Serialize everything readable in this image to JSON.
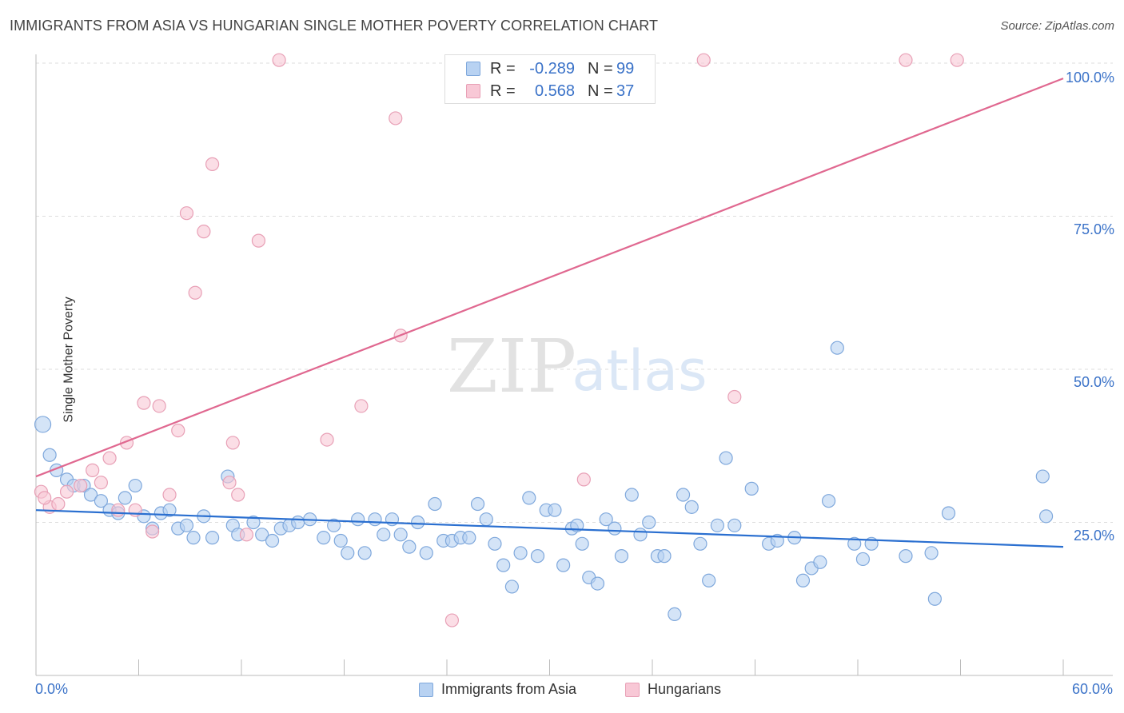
{
  "title": "IMMIGRANTS FROM ASIA VS HUNGARIAN SINGLE MOTHER POVERTY CORRELATION CHART",
  "source": "Source: ZipAtlas.com",
  "watermark": {
    "zip": "ZIP",
    "atlas": "atlas"
  },
  "legend_top": {
    "rows": [
      {
        "r_label": "R =",
        "r_value": "-0.289",
        "n_label": "N =",
        "n_value": "99"
      },
      {
        "r_label": "R =",
        "r_value": "0.568",
        "n_label": "N =",
        "n_value": "37"
      }
    ]
  },
  "legend_bottom": {
    "items": [
      {
        "label": "Immigrants from Asia"
      },
      {
        "label": "Hungarians"
      }
    ]
  },
  "colors": {
    "blue_fill": "#b8d2f2",
    "blue_stroke": "#7fa8dc",
    "blue_line": "#2a6fd0",
    "pink_fill": "#f8c8d6",
    "pink_stroke": "#e8a0b6",
    "pink_line": "#e06890",
    "axis_text": "#3a72c8",
    "grid": "#dddddd"
  },
  "chart_data": {
    "type": "scatter",
    "title": "IMMIGRANTS FROM ASIA VS HUNGARIAN SINGLE MOTHER POVERTY CORRELATION CHART",
    "xlabel": "",
    "ylabel": "Single Mother Poverty",
    "xlim": [
      0,
      60
    ],
    "ylim": [
      0,
      100
    ],
    "x_tick_labels": [
      "0.0%",
      "60.0%"
    ],
    "y_tick_labels": [
      "25.0%",
      "50.0%",
      "75.0%",
      "100.0%"
    ],
    "y_ticks": [
      25,
      50,
      75,
      100
    ],
    "grid": true,
    "legend_position": "top-center",
    "series": [
      {
        "name": "Immigrants from Asia",
        "color": "blue",
        "r": -0.289,
        "n": 99,
        "trend": {
          "x": [
            0,
            60
          ],
          "y": [
            27.0,
            21.0
          ]
        },
        "points": [
          [
            0.4,
            41.0
          ],
          [
            0.8,
            36.0
          ],
          [
            1.2,
            33.5
          ],
          [
            1.8,
            32.0
          ],
          [
            2.2,
            31.0
          ],
          [
            2.8,
            31.0
          ],
          [
            3.2,
            29.5
          ],
          [
            3.8,
            28.5
          ],
          [
            4.3,
            27.0
          ],
          [
            4.8,
            26.5
          ],
          [
            5.2,
            29.0
          ],
          [
            5.8,
            31.0
          ],
          [
            6.3,
            26.0
          ],
          [
            6.8,
            24.0
          ],
          [
            7.3,
            26.5
          ],
          [
            7.8,
            27.0
          ],
          [
            8.3,
            24.0
          ],
          [
            8.8,
            24.5
          ],
          [
            9.2,
            22.5
          ],
          [
            9.8,
            26.0
          ],
          [
            10.3,
            22.5
          ],
          [
            11.2,
            32.5
          ],
          [
            11.5,
            24.5
          ],
          [
            11.8,
            23.0
          ],
          [
            12.7,
            25.0
          ],
          [
            13.2,
            23.0
          ],
          [
            13.8,
            22.0
          ],
          [
            14.3,
            24.0
          ],
          [
            14.8,
            24.5
          ],
          [
            15.3,
            25.0
          ],
          [
            16.0,
            25.5
          ],
          [
            16.8,
            22.5
          ],
          [
            17.4,
            24.5
          ],
          [
            17.8,
            22.0
          ],
          [
            18.2,
            20.0
          ],
          [
            18.8,
            25.5
          ],
          [
            19.2,
            20.0
          ],
          [
            19.8,
            25.5
          ],
          [
            20.3,
            23.0
          ],
          [
            20.8,
            25.5
          ],
          [
            21.3,
            23.0
          ],
          [
            21.8,
            21.0
          ],
          [
            22.3,
            25.0
          ],
          [
            22.8,
            20.0
          ],
          [
            23.3,
            28.0
          ],
          [
            23.8,
            22.0
          ],
          [
            24.3,
            22.0
          ],
          [
            24.8,
            22.5
          ],
          [
            25.3,
            22.5
          ],
          [
            25.8,
            28.0
          ],
          [
            26.3,
            25.5
          ],
          [
            26.8,
            21.5
          ],
          [
            27.3,
            18.0
          ],
          [
            27.8,
            14.5
          ],
          [
            28.3,
            20.0
          ],
          [
            28.8,
            29.0
          ],
          [
            29.3,
            19.5
          ],
          [
            29.8,
            27.0
          ],
          [
            30.3,
            27.0
          ],
          [
            30.8,
            18.0
          ],
          [
            31.3,
            24.0
          ],
          [
            31.6,
            24.5
          ],
          [
            31.9,
            21.5
          ],
          [
            32.3,
            16.0
          ],
          [
            32.8,
            15.0
          ],
          [
            33.3,
            25.5
          ],
          [
            33.8,
            24.0
          ],
          [
            34.2,
            19.5
          ],
          [
            34.8,
            29.5
          ],
          [
            35.3,
            23.0
          ],
          [
            35.8,
            25.0
          ],
          [
            36.3,
            19.5
          ],
          [
            36.7,
            19.5
          ],
          [
            37.3,
            10.0
          ],
          [
            37.8,
            29.5
          ],
          [
            38.3,
            27.5
          ],
          [
            38.8,
            21.5
          ],
          [
            39.3,
            15.5
          ],
          [
            39.8,
            24.5
          ],
          [
            40.3,
            35.5
          ],
          [
            40.8,
            24.5
          ],
          [
            41.8,
            30.5
          ],
          [
            42.8,
            21.5
          ],
          [
            43.3,
            22.0
          ],
          [
            44.3,
            22.5
          ],
          [
            44.8,
            15.5
          ],
          [
            45.3,
            17.5
          ],
          [
            45.8,
            18.5
          ],
          [
            46.3,
            28.5
          ],
          [
            46.8,
            53.5
          ],
          [
            47.8,
            21.5
          ],
          [
            48.3,
            19.0
          ],
          [
            48.8,
            21.5
          ],
          [
            50.8,
            19.5
          ],
          [
            52.3,
            20.0
          ],
          [
            52.5,
            12.5
          ],
          [
            53.3,
            26.5
          ],
          [
            58.8,
            32.5
          ],
          [
            59.0,
            26.0
          ]
        ]
      },
      {
        "name": "Hungarians",
        "color": "pink",
        "r": 0.568,
        "n": 37,
        "trend": {
          "x": [
            0,
            60
          ],
          "y": [
            32.5,
            97.5
          ]
        },
        "points": [
          [
            0.3,
            30.0
          ],
          [
            0.8,
            27.5
          ],
          [
            1.3,
            28.0
          ],
          [
            1.8,
            30.0
          ],
          [
            2.6,
            31.0
          ],
          [
            3.3,
            33.5
          ],
          [
            3.8,
            31.5
          ],
          [
            4.3,
            35.5
          ],
          [
            4.8,
            27.0
          ],
          [
            5.3,
            38.0
          ],
          [
            5.8,
            27.0
          ],
          [
            6.3,
            44.5
          ],
          [
            6.8,
            23.5
          ],
          [
            7.2,
            44.0
          ],
          [
            7.8,
            29.5
          ],
          [
            8.3,
            40.0
          ],
          [
            8.8,
            75.5
          ],
          [
            9.3,
            62.5
          ],
          [
            9.8,
            72.5
          ],
          [
            10.3,
            83.5
          ],
          [
            11.3,
            31.5
          ],
          [
            11.5,
            38.0
          ],
          [
            11.8,
            29.5
          ],
          [
            12.3,
            23.0
          ],
          [
            13.0,
            71.0
          ],
          [
            14.2,
            100.5
          ],
          [
            17.0,
            38.5
          ],
          [
            19.0,
            44.0
          ],
          [
            21.0,
            91.0
          ],
          [
            21.3,
            55.5
          ],
          [
            24.3,
            9.0
          ],
          [
            32.0,
            32.0
          ],
          [
            39.0,
            100.5
          ],
          [
            40.8,
            45.5
          ],
          [
            50.8,
            100.5
          ],
          [
            53.8,
            100.5
          ],
          [
            0.5,
            29.0
          ]
        ]
      }
    ]
  }
}
